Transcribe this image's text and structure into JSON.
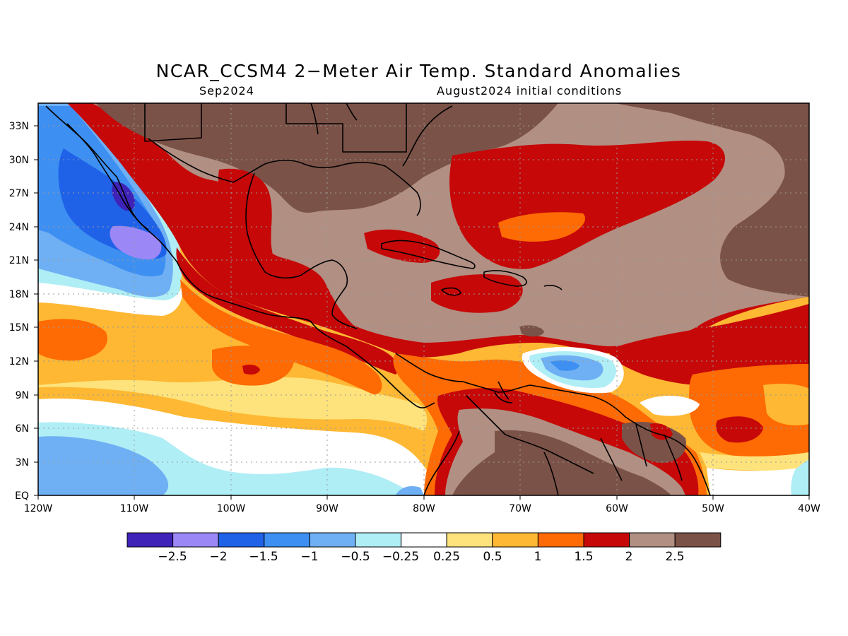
{
  "title": "NCAR_CCSM4 2−Meter Air Temp. Standard Anomalies",
  "subtitle_left": "Sep2024",
  "subtitle_right": "August2024 initial conditions",
  "chart_data": {
    "type": "heatmap",
    "title": "NCAR_CCSM4 2−Meter Air Temp. Standard Anomalies",
    "valid_month": "Sep2024",
    "initial_conditions": "August2024 initial conditions",
    "lon_range": [
      -120,
      -40
    ],
    "lat_range": [
      0,
      35
    ],
    "x_ticks": [
      "120W",
      "110W",
      "100W",
      "90W",
      "80W",
      "70W",
      "60W",
      "50W",
      "40W"
    ],
    "y_ticks": [
      "EQ",
      "3N",
      "6N",
      "9N",
      "12N",
      "15N",
      "18N",
      "21N",
      "24N",
      "27N",
      "30N",
      "33N"
    ],
    "grid": "dotted",
    "colorbar": {
      "labels": [
        "−2.5",
        "−2",
        "−1.5",
        "−1",
        "−0.5",
        "−0.25",
        "0.25",
        "0.5",
        "1",
        "1.5",
        "2",
        "2.5"
      ],
      "colors": [
        "#3f23b8",
        "#9b87f5",
        "#1f62e8",
        "#3d8ff2",
        "#6fb0f4",
        "#b0eef6",
        "#ffffff",
        "#fee37c",
        "#feb833",
        "#fe6a04",
        "#c60808",
        "#b18f83",
        "#7b5247"
      ]
    }
  }
}
